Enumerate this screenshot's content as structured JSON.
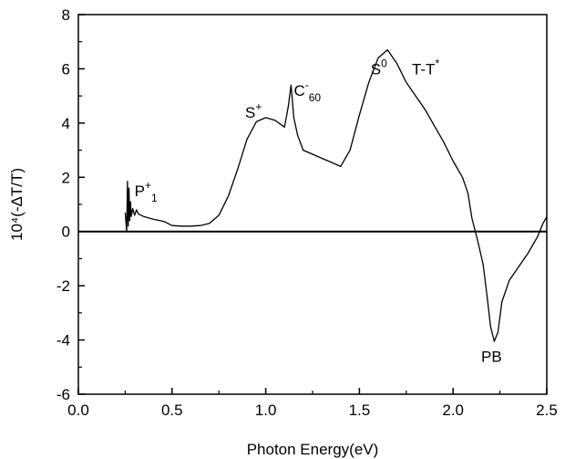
{
  "chart_data": {
    "type": "line",
    "xlabel": "Photon Energy(eV)",
    "ylabel": "10⁴(-ΔT/T)",
    "xlim": [
      0.0,
      2.5
    ],
    "ylim": [
      -6,
      8
    ],
    "x_ticks": [
      "0.0",
      "0.5",
      "1.0",
      "1.5",
      "2.0",
      "2.5"
    ],
    "y_ticks": [
      "-6",
      "-4",
      "-2",
      "0",
      "2",
      "4",
      "6",
      "8"
    ],
    "grid": false,
    "reference_line_y": 0,
    "series": [
      {
        "color": "#000000",
        "points": [
          [
            0.25,
            0.7
          ],
          [
            0.258,
            0.0
          ],
          [
            0.262,
            1.85
          ],
          [
            0.266,
            0.2
          ],
          [
            0.27,
            1.6
          ],
          [
            0.274,
            0.4
          ],
          [
            0.278,
            1.1
          ],
          [
            0.282,
            0.55
          ],
          [
            0.29,
            0.85
          ],
          [
            0.3,
            0.6
          ],
          [
            0.31,
            0.8
          ],
          [
            0.32,
            0.65
          ],
          [
            0.35,
            0.55
          ],
          [
            0.4,
            0.45
          ],
          [
            0.45,
            0.38
          ],
          [
            0.47,
            0.33
          ],
          [
            0.5,
            0.22
          ],
          [
            0.55,
            0.2
          ],
          [
            0.6,
            0.2
          ],
          [
            0.65,
            0.22
          ],
          [
            0.7,
            0.3
          ],
          [
            0.75,
            0.6
          ],
          [
            0.8,
            1.3
          ],
          [
            0.85,
            2.3
          ],
          [
            0.9,
            3.4
          ],
          [
            0.95,
            4.05
          ],
          [
            1.0,
            4.2
          ],
          [
            1.05,
            4.1
          ],
          [
            1.08,
            3.95
          ],
          [
            1.1,
            3.85
          ],
          [
            1.12,
            4.6
          ],
          [
            1.135,
            5.4
          ],
          [
            1.15,
            4.2
          ],
          [
            1.17,
            3.55
          ],
          [
            1.2,
            3.0
          ],
          [
            1.25,
            2.85
          ],
          [
            1.3,
            2.7
          ],
          [
            1.35,
            2.55
          ],
          [
            1.4,
            2.4
          ],
          [
            1.45,
            3.0
          ],
          [
            1.5,
            4.3
          ],
          [
            1.55,
            5.5
          ],
          [
            1.6,
            6.4
          ],
          [
            1.65,
            6.7
          ],
          [
            1.7,
            6.2
          ],
          [
            1.75,
            5.5
          ],
          [
            1.8,
            5.0
          ],
          [
            1.85,
            4.5
          ],
          [
            1.9,
            3.9
          ],
          [
            1.95,
            3.3
          ],
          [
            2.0,
            2.6
          ],
          [
            2.05,
            2.0
          ],
          [
            2.08,
            1.4
          ],
          [
            2.1,
            0.5
          ],
          [
            2.13,
            -0.3
          ],
          [
            2.16,
            -1.2
          ],
          [
            2.18,
            -2.3
          ],
          [
            2.2,
            -3.5
          ],
          [
            2.22,
            -4.05
          ],
          [
            2.24,
            -3.7
          ],
          [
            2.26,
            -2.6
          ],
          [
            2.3,
            -1.8
          ],
          [
            2.35,
            -1.3
          ],
          [
            2.4,
            -0.8
          ],
          [
            2.45,
            -0.2
          ],
          [
            2.48,
            0.3
          ],
          [
            2.5,
            0.55
          ]
        ]
      }
    ],
    "annotations": [
      {
        "text": "P",
        "sup": "+",
        "sub": "1",
        "x": 0.3,
        "y": 1.3
      },
      {
        "text": "S",
        "sup": "+",
        "sub": "",
        "x": 0.89,
        "y": 4.2
      },
      {
        "text": "C",
        "sup": "-",
        "sub": "60",
        "x": 1.15,
        "y": 5.0
      },
      {
        "text": "S",
        "sup": "0",
        "sub": "",
        "x": 1.56,
        "y": 5.8
      },
      {
        "text": "T-T",
        "sup": "*",
        "sub": "",
        "x": 1.78,
        "y": 5.8
      },
      {
        "text": "PB",
        "sup": "",
        "sub": "",
        "x": 2.15,
        "y": -4.8
      }
    ]
  }
}
